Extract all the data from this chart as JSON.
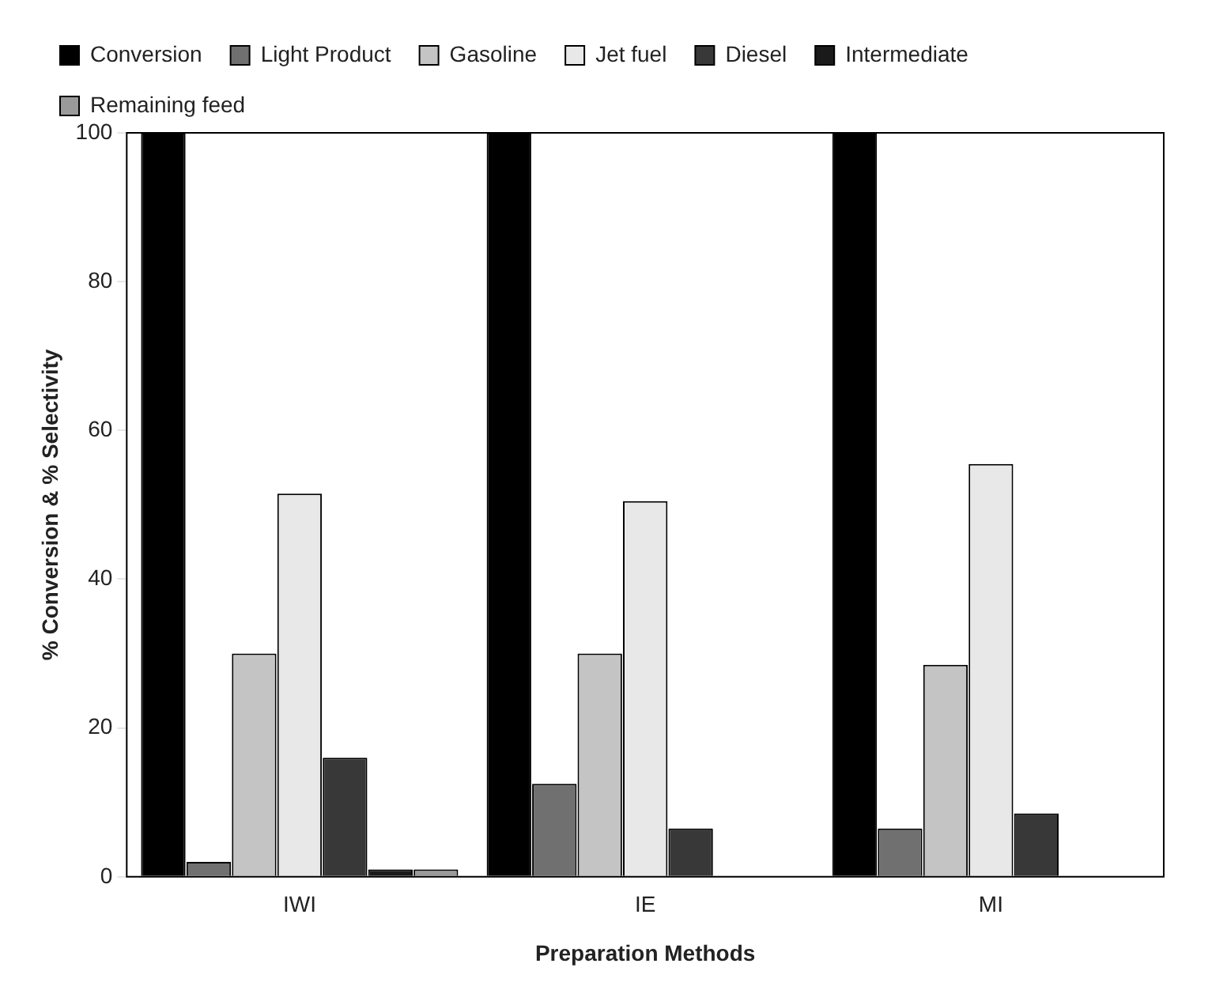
{
  "chart_data": {
    "type": "bar",
    "xlabel": "Preparation Methods",
    "ylabel": "% Conversion & % Selectivity",
    "categories": [
      "IWI",
      "IE",
      "MI"
    ],
    "series": [
      {
        "name": "Conversion",
        "color": "#000000",
        "values": [
          100,
          100,
          100
        ]
      },
      {
        "name": "Light Product",
        "color": "#707070",
        "values": [
          2,
          12.5,
          6.5
        ]
      },
      {
        "name": "Gasoline",
        "color": "#c4c4c4",
        "values": [
          30,
          30,
          28.5
        ]
      },
      {
        "name": "Jet fuel",
        "color": "#e8e8e8",
        "values": [
          51.5,
          50.5,
          55.5
        ]
      },
      {
        "name": "Diesel",
        "color": "#383838",
        "values": [
          16,
          6.5,
          8.5
        ]
      },
      {
        "name": "Intermediate",
        "color": "#1a1a1a",
        "values": [
          1,
          0,
          0
        ]
      },
      {
        "name": "Remaining feed",
        "color": "#9a9a9a",
        "values": [
          1,
          0,
          0
        ]
      }
    ],
    "ylim": [
      0,
      100
    ],
    "yticks": [
      0,
      20,
      40,
      60,
      80,
      100
    ],
    "grid": false,
    "legend": "top"
  }
}
